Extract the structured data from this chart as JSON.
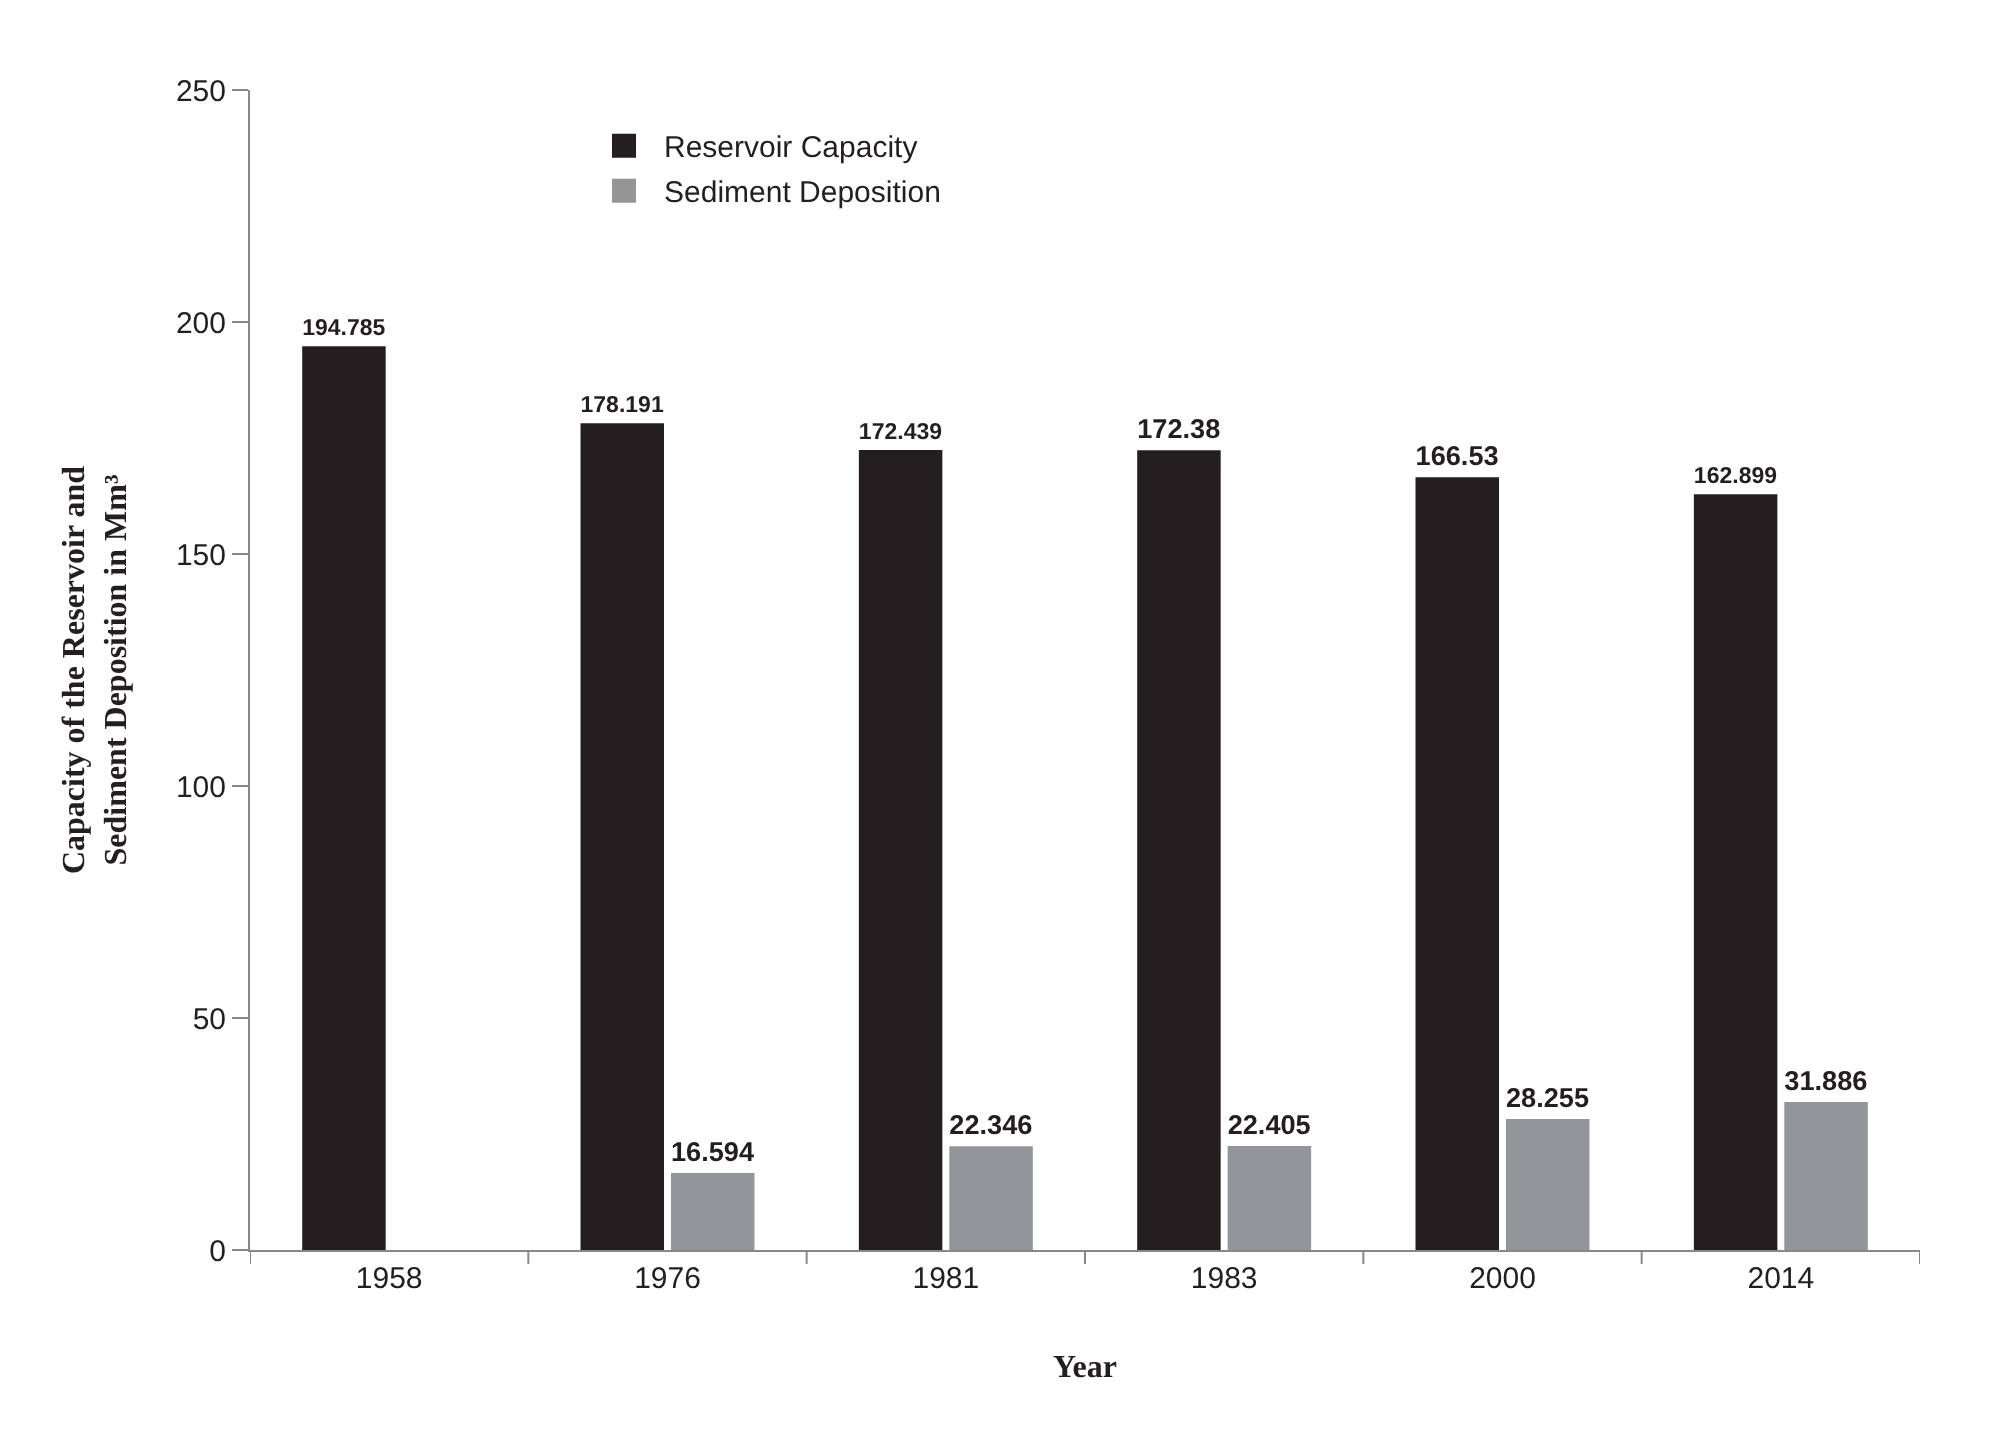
{
  "chart_data": {
    "type": "bar",
    "xlabel": "Year",
    "ylabel": "Capacity of the Reservoir and\nSediment Deposition in Mm³",
    "categories": [
      "1958",
      "1976",
      "1981",
      "1983",
      "2000",
      "2014"
    ],
    "series": [
      {
        "name": "Reservoir Capacity",
        "color": "#231f20",
        "values": [
          194.785,
          178.191,
          172.439,
          172.38,
          166.53,
          162.899
        ]
      },
      {
        "name": "Sediment Deposition",
        "color": "#939598",
        "values": [
          null,
          16.594,
          22.346,
          22.405,
          28.255,
          31.886
        ]
      }
    ],
    "ylim": [
      0,
      250
    ],
    "yticks": [
      0,
      50,
      100,
      150,
      200,
      250
    ],
    "grid": false,
    "legend": "top left",
    "data_labels": true
  }
}
